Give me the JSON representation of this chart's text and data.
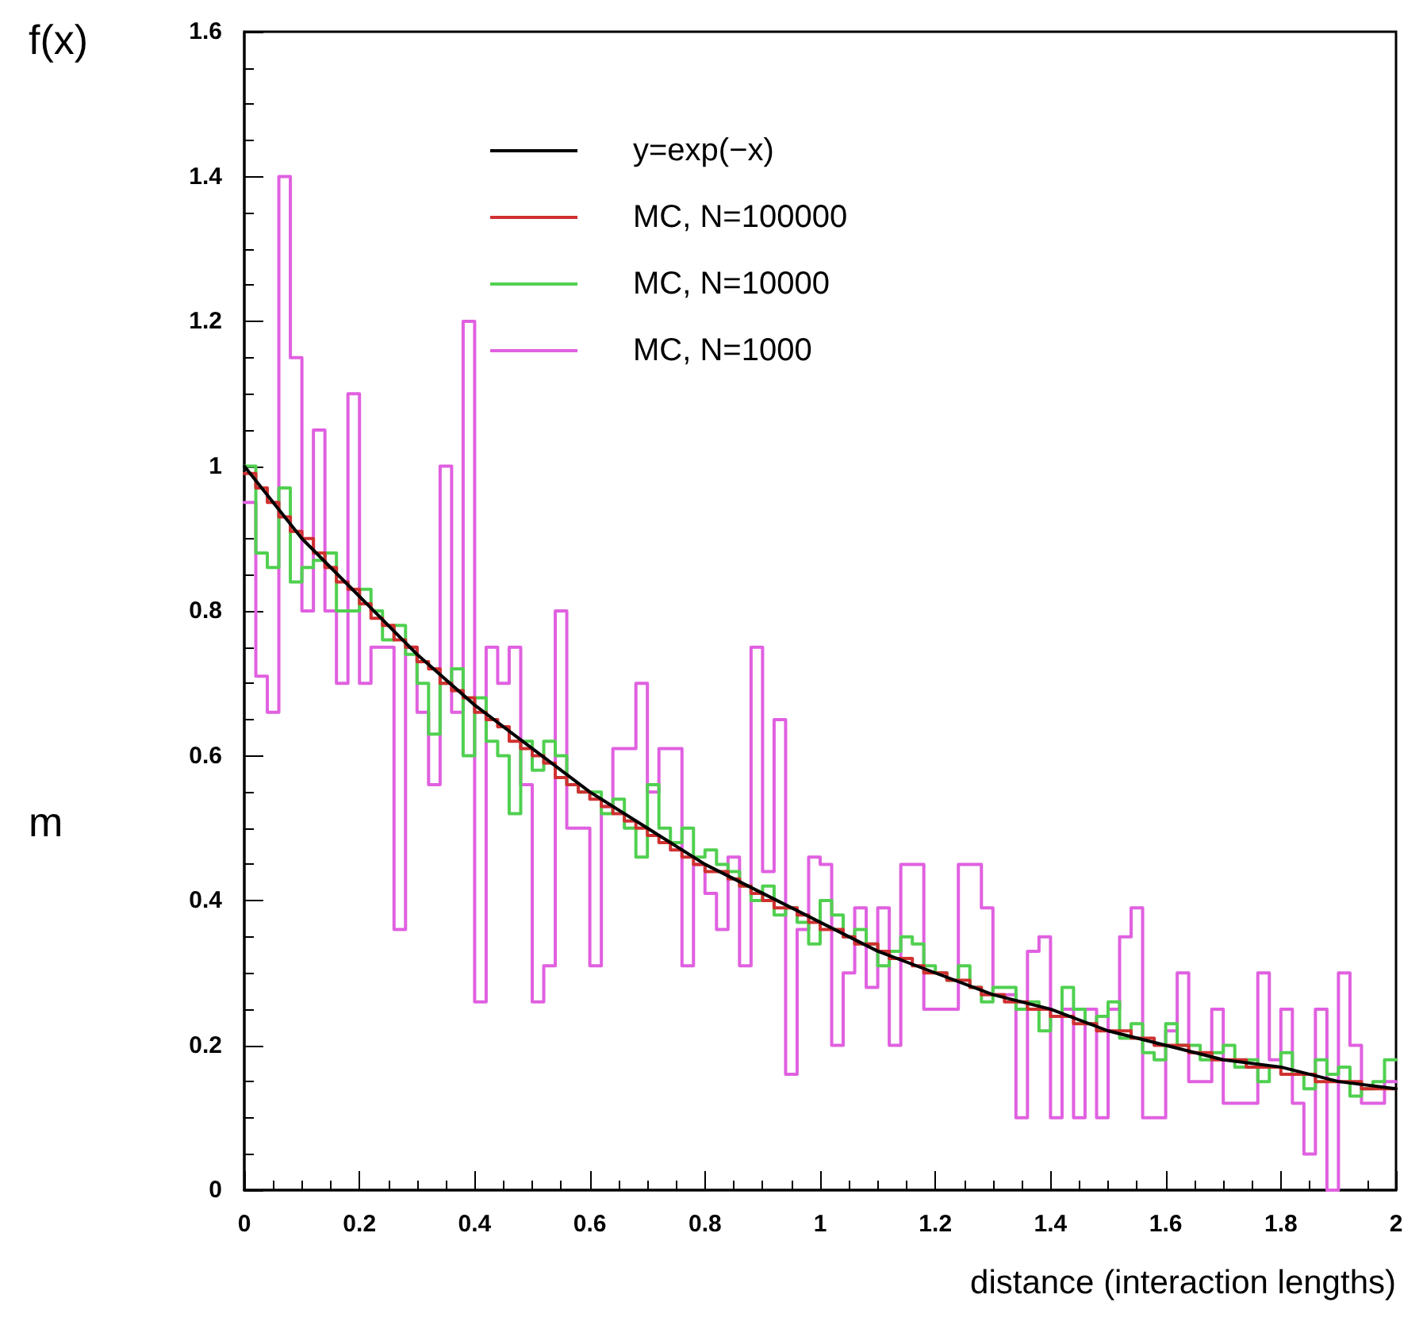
{
  "chart_data": {
    "type": "histogram",
    "ylabel": "f(x)",
    "xlabel": "distance (interaction lengths)",
    "annotations": [
      "m"
    ],
    "xlim": [
      0,
      2
    ],
    "xticks": [
      0,
      0.2,
      0.4,
      0.6,
      0.8,
      1,
      1.2,
      1.4,
      1.6,
      1.8,
      2
    ],
    "ylim": [
      0,
      1.6
    ],
    "yticks": [
      0,
      0.2,
      0.4,
      0.6,
      0.8,
      1,
      1.2,
      1.4,
      1.6
    ],
    "grid": false,
    "legend": "top left",
    "bins": [
      0,
      0.02,
      0.04,
      0.06,
      0.08,
      0.1,
      0.12,
      0.14,
      0.16,
      0.18,
      0.2,
      0.22,
      0.24,
      0.26,
      0.28,
      0.3,
      0.32,
      0.34,
      0.36,
      0.38,
      0.4,
      0.42,
      0.44,
      0.46,
      0.48,
      0.5,
      0.52,
      0.54,
      0.56,
      0.58,
      0.6,
      0.62,
      0.64,
      0.66,
      0.68,
      0.7,
      0.72,
      0.74,
      0.76,
      0.78,
      0.8,
      0.82,
      0.84,
      0.86,
      0.88,
      0.9,
      0.92,
      0.94,
      0.96,
      0.98,
      1,
      1.02,
      1.04,
      1.06,
      1.08,
      1.1,
      1.12,
      1.14,
      1.16,
      1.18,
      1.2,
      1.22,
      1.24,
      1.26,
      1.28,
      1.3,
      1.32,
      1.34,
      1.36,
      1.38,
      1.4,
      1.42,
      1.44,
      1.46,
      1.48,
      1.5,
      1.52,
      1.54,
      1.56,
      1.58,
      1.6,
      1.62,
      1.64,
      1.66,
      1.68,
      1.7,
      1.72,
      1.74,
      1.76,
      1.78,
      1.8,
      1.82,
      1.84,
      1.86,
      1.88,
      1.9,
      1.92,
      1.94,
      1.96,
      1.98,
      2
    ],
    "series": [
      {
        "name": "y=exp(−x)",
        "type": "line",
        "color": "#000000",
        "x": [
          0,
          0.1,
          0.2,
          0.3,
          0.4,
          0.5,
          0.6,
          0.7,
          0.8,
          0.9,
          1,
          1.1,
          1.2,
          1.3,
          1.4,
          1.5,
          1.6,
          1.7,
          1.8,
          1.9,
          2
        ],
        "values": [
          1,
          0.9,
          0.82,
          0.74,
          0.67,
          0.61,
          0.55,
          0.5,
          0.45,
          0.41,
          0.37,
          0.33,
          0.3,
          0.27,
          0.25,
          0.22,
          0.2,
          0.18,
          0.17,
          0.15,
          0.14
        ]
      },
      {
        "name": "MC, N=100000",
        "color": "#d03030",
        "values": [
          0.99,
          0.97,
          0.95,
          0.93,
          0.91,
          0.9,
          0.88,
          0.86,
          0.84,
          0.83,
          0.81,
          0.79,
          0.78,
          0.76,
          0.75,
          0.73,
          0.72,
          0.7,
          0.69,
          0.68,
          0.66,
          0.65,
          0.64,
          0.62,
          0.61,
          0.6,
          0.59,
          0.57,
          0.56,
          0.55,
          0.54,
          0.53,
          0.52,
          0.51,
          0.5,
          0.49,
          0.48,
          0.47,
          0.46,
          0.45,
          0.44,
          0.44,
          0.43,
          0.42,
          0.41,
          0.4,
          0.39,
          0.39,
          0.38,
          0.37,
          0.36,
          0.36,
          0.35,
          0.34,
          0.34,
          0.33,
          0.32,
          0.32,
          0.31,
          0.3,
          0.3,
          0.29,
          0.29,
          0.28,
          0.27,
          0.27,
          0.26,
          0.26,
          0.25,
          0.25,
          0.24,
          0.24,
          0.23,
          0.23,
          0.22,
          0.22,
          0.22,
          0.21,
          0.21,
          0.2,
          0.2,
          0.2,
          0.19,
          0.19,
          0.18,
          0.18,
          0.18,
          0.17,
          0.17,
          0.17,
          0.16,
          0.16,
          0.16,
          0.15,
          0.15,
          0.15,
          0.15,
          0.14,
          0.14,
          0.14
        ]
      },
      {
        "name": "MC, N=10000",
        "color": "#50d050",
        "values": [
          1,
          0.88,
          0.86,
          0.97,
          0.84,
          0.86,
          0.87,
          0.88,
          0.8,
          0.8,
          0.83,
          0.8,
          0.76,
          0.78,
          0.74,
          0.7,
          0.63,
          0.7,
          0.72,
          0.6,
          0.68,
          0.62,
          0.6,
          0.52,
          0.62,
          0.58,
          0.62,
          0.6,
          0.56,
          0.55,
          0.55,
          0.52,
          0.54,
          0.5,
          0.46,
          0.56,
          0.5,
          0.48,
          0.5,
          0.46,
          0.47,
          0.45,
          0.44,
          0.42,
          0.4,
          0.42,
          0.38,
          0.39,
          0.37,
          0.34,
          0.4,
          0.38,
          0.35,
          0.36,
          0.34,
          0.31,
          0.33,
          0.35,
          0.34,
          0.31,
          0.3,
          0.29,
          0.31,
          0.28,
          0.26,
          0.28,
          0.28,
          0.25,
          0.26,
          0.22,
          0.24,
          0.28,
          0.25,
          0.23,
          0.24,
          0.26,
          0.21,
          0.23,
          0.19,
          0.18,
          0.23,
          0.2,
          0.2,
          0.18,
          0.19,
          0.2,
          0.17,
          0.18,
          0.15,
          0.17,
          0.19,
          0.16,
          0.14,
          0.18,
          0.16,
          0.17,
          0.13,
          0.14,
          0.15,
          0.18
        ]
      },
      {
        "name": "MC, N=1000",
        "color": "#e060e0",
        "values": [
          0.95,
          0.71,
          0.66,
          1.4,
          1.15,
          0.8,
          1.05,
          0.8,
          0.7,
          1.1,
          0.7,
          0.75,
          0.75,
          0.36,
          0.75,
          0.66,
          0.56,
          1,
          0.66,
          1.2,
          0.26,
          0.75,
          0.7,
          0.75,
          0.56,
          0.26,
          0.31,
          0.8,
          0.5,
          0.5,
          0.31,
          0.53,
          0.61,
          0.61,
          0.7,
          0.55,
          0.61,
          0.61,
          0.31,
          0.45,
          0.41,
          0.36,
          0.46,
          0.31,
          0.75,
          0.44,
          0.65,
          0.16,
          0.36,
          0.46,
          0.45,
          0.2,
          0.3,
          0.39,
          0.28,
          0.39,
          0.2,
          0.45,
          0.45,
          0.25,
          0.25,
          0.25,
          0.45,
          0.45,
          0.39,
          0.27,
          0.27,
          0.1,
          0.33,
          0.35,
          0.1,
          0.25,
          0.1,
          0.25,
          0.1,
          0.25,
          0.35,
          0.39,
          0.1,
          0.1,
          0.22,
          0.3,
          0.15,
          0.15,
          0.25,
          0.12,
          0.12,
          0.12,
          0.3,
          0.18,
          0.25,
          0.12,
          0.05,
          0.25,
          0,
          0.3,
          0.2,
          0.12,
          0.12,
          0.15
        ]
      }
    ]
  }
}
